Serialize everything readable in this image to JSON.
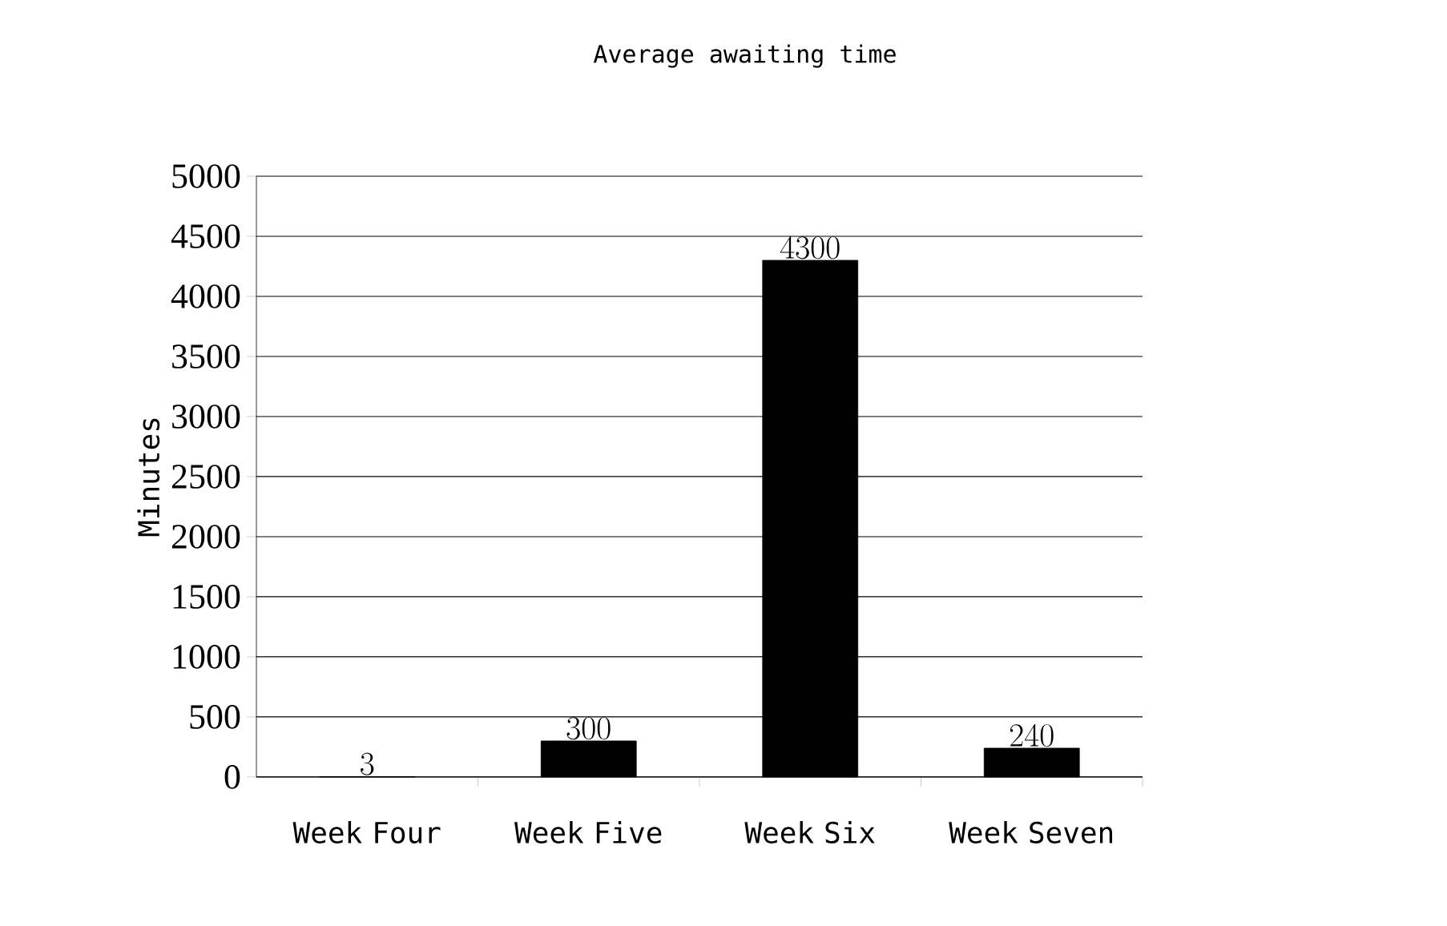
{
  "chart_data": {
    "type": "bar",
    "title": "Average awaiting time",
    "ylabel": "Minutes",
    "categories": [
      "Week Four",
      "Week Five",
      "Week Six",
      "Week Seven"
    ],
    "values": [
      3,
      300,
      4300,
      240
    ],
    "color": "#000000",
    "ylim": [
      0,
      5000
    ],
    "yticks": [
      0,
      500,
      1000,
      1500,
      2000,
      2500,
      3000,
      3500,
      4000,
      4500,
      5000
    ],
    "grid": "y",
    "data_labels": true
  }
}
